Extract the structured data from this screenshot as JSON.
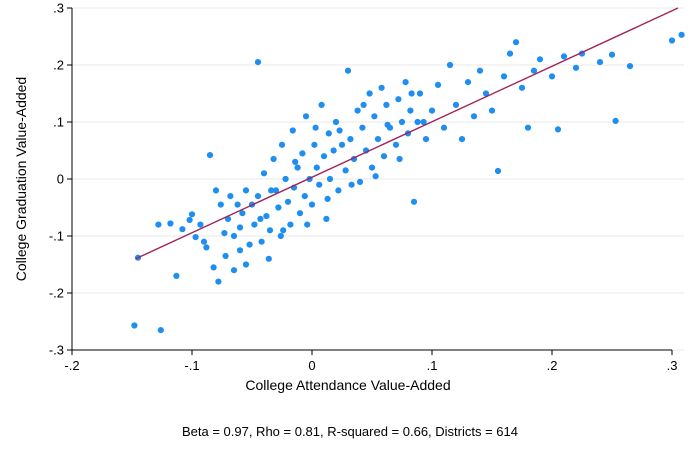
{
  "chart_data": {
    "type": "scatter",
    "title": "",
    "xlabel": "College Attendance Value-Added",
    "ylabel": "College Graduation Value-Added",
    "xlim": [
      -0.2,
      0.31
    ],
    "ylim": [
      -0.3,
      0.3
    ],
    "x_ticks": [
      {
        "value": -0.2,
        "label": "-.2"
      },
      {
        "value": -0.1,
        "label": "-.1"
      },
      {
        "value": 0,
        "label": "0"
      },
      {
        "value": 0.1,
        "label": ".1"
      },
      {
        "value": 0.2,
        "label": ".2"
      },
      {
        "value": 0.3,
        "label": ".3"
      }
    ],
    "y_ticks": [
      {
        "value": 0.3,
        "label": ".3"
      },
      {
        "value": 0.2,
        "label": ".2"
      },
      {
        "value": 0.1,
        "label": ".1"
      },
      {
        "value": 0,
        "label": "0"
      },
      {
        "value": -0.1,
        "label": "-.1"
      },
      {
        "value": -0.2,
        "label": "-.2"
      },
      {
        "value": -0.3,
        "label": "-.3"
      }
    ],
    "grid": "horizontal",
    "marker_color": "#1f8ef1",
    "fit_line_color": "#a0245a",
    "fit_line": {
      "x": [
        -0.147,
        0.305
      ],
      "y": [
        -0.14,
        0.3
      ]
    },
    "points": [
      [
        -0.148,
        -0.257
      ],
      [
        -0.126,
        -0.265
      ],
      [
        -0.145,
        -0.138
      ],
      [
        -0.113,
        -0.17
      ],
      [
        -0.128,
        -0.08
      ],
      [
        -0.118,
        -0.078
      ],
      [
        -0.108,
        -0.088
      ],
      [
        -0.097,
        -0.102
      ],
      [
        -0.1,
        -0.062
      ],
      [
        -0.093,
        -0.08
      ],
      [
        -0.09,
        -0.11
      ],
      [
        -0.082,
        -0.155
      ],
      [
        -0.078,
        -0.18
      ],
      [
        -0.072,
        -0.135
      ],
      [
        -0.065,
        -0.16
      ],
      [
        -0.06,
        -0.125
      ],
      [
        -0.055,
        -0.15
      ],
      [
        -0.085,
        0.042
      ],
      [
        -0.08,
        -0.02
      ],
      [
        -0.076,
        -0.045
      ],
      [
        -0.07,
        -0.07
      ],
      [
        -0.068,
        -0.03
      ],
      [
        -0.065,
        -0.1
      ],
      [
        -0.06,
        -0.085
      ],
      [
        -0.058,
        -0.06
      ],
      [
        -0.055,
        -0.02
      ],
      [
        -0.052,
        -0.115
      ],
      [
        -0.05,
        -0.045
      ],
      [
        -0.048,
        -0.08
      ],
      [
        -0.045,
        0.205
      ],
      [
        -0.045,
        -0.03
      ],
      [
        -0.042,
        -0.11
      ],
      [
        -0.04,
        0.01
      ],
      [
        -0.038,
        -0.065
      ],
      [
        -0.036,
        -0.14
      ],
      [
        -0.035,
        -0.09
      ],
      [
        -0.032,
        0.035
      ],
      [
        -0.03,
        -0.02
      ],
      [
        -0.028,
        -0.05
      ],
      [
        -0.026,
        -0.1
      ],
      [
        -0.025,
        0.06
      ],
      [
        -0.022,
        0.0
      ],
      [
        -0.02,
        -0.04
      ],
      [
        -0.018,
        -0.08
      ],
      [
        -0.016,
        0.085
      ],
      [
        -0.015,
        -0.015
      ],
      [
        -0.012,
        0.02
      ],
      [
        -0.01,
        -0.06
      ],
      [
        -0.008,
        0.045
      ],
      [
        -0.006,
        -0.03
      ],
      [
        -0.005,
        0.11
      ],
      [
        -0.002,
        0.0
      ],
      [
        0.0,
        -0.045
      ],
      [
        0.002,
        0.06
      ],
      [
        0.004,
        0.02
      ],
      [
        0.006,
        -0.01
      ],
      [
        0.008,
        0.13
      ],
      [
        0.01,
        0.04
      ],
      [
        0.012,
        -0.07
      ],
      [
        0.014,
        0.08
      ],
      [
        0.015,
        0.0
      ],
      [
        0.018,
        0.05
      ],
      [
        0.02,
        0.1
      ],
      [
        0.022,
        -0.02
      ],
      [
        0.025,
        0.06
      ],
      [
        0.028,
        0.015
      ],
      [
        0.03,
        0.19
      ],
      [
        0.032,
        0.07
      ],
      [
        0.035,
        0.035
      ],
      [
        0.038,
        0.12
      ],
      [
        0.04,
        -0.005
      ],
      [
        0.042,
        0.09
      ],
      [
        0.045,
        0.05
      ],
      [
        0.048,
        0.15
      ],
      [
        0.05,
        0.02
      ],
      [
        0.052,
        0.11
      ],
      [
        0.055,
        0.07
      ],
      [
        0.058,
        0.16
      ],
      [
        0.06,
        0.04
      ],
      [
        0.062,
        0.13
      ],
      [
        0.065,
        0.09
      ],
      [
        0.07,
        0.06
      ],
      [
        0.072,
        0.14
      ],
      [
        0.075,
        0.1
      ],
      [
        0.078,
        0.17
      ],
      [
        0.08,
        0.08
      ],
      [
        0.082,
        0.12
      ],
      [
        0.085,
        -0.04
      ],
      [
        0.088,
        0.1
      ],
      [
        0.09,
        0.15
      ],
      [
        0.095,
        0.07
      ],
      [
        0.1,
        0.12
      ],
      [
        0.105,
        0.165
      ],
      [
        0.11,
        0.09
      ],
      [
        0.115,
        0.2
      ],
      [
        0.12,
        0.13
      ],
      [
        0.125,
        0.07
      ],
      [
        0.13,
        0.17
      ],
      [
        0.135,
        0.11
      ],
      [
        0.14,
        0.19
      ],
      [
        0.145,
        0.15
      ],
      [
        0.15,
        0.12
      ],
      [
        0.155,
        0.014
      ],
      [
        0.16,
        0.18
      ],
      [
        0.165,
        0.22
      ],
      [
        0.17,
        0.24
      ],
      [
        0.175,
        0.16
      ],
      [
        0.18,
        0.09
      ],
      [
        0.185,
        0.19
      ],
      [
        0.19,
        0.21
      ],
      [
        0.2,
        0.18
      ],
      [
        0.205,
        0.087
      ],
      [
        0.21,
        0.215
      ],
      [
        0.22,
        0.195
      ],
      [
        0.225,
        0.22
      ],
      [
        0.24,
        0.205
      ],
      [
        0.25,
        0.218
      ],
      [
        0.253,
        0.102
      ],
      [
        0.265,
        0.198
      ],
      [
        0.3,
        0.243
      ],
      [
        0.308,
        0.253
      ],
      [
        -0.102,
        -0.072
      ],
      [
        -0.088,
        -0.12
      ],
      [
        -0.073,
        -0.095
      ],
      [
        -0.062,
        -0.045
      ],
      [
        -0.043,
        -0.07
      ],
      [
        -0.034,
        -0.02
      ],
      [
        -0.024,
        -0.09
      ],
      [
        -0.014,
        0.03
      ],
      [
        -0.004,
        -0.08
      ],
      [
        0.003,
        0.09
      ],
      [
        0.013,
        -0.035
      ],
      [
        0.023,
        0.085
      ],
      [
        0.033,
        -0.01
      ],
      [
        0.043,
        0.13
      ],
      [
        0.053,
        0.005
      ],
      [
        0.063,
        0.095
      ],
      [
        0.073,
        0.035
      ],
      [
        0.083,
        0.15
      ],
      [
        0.093,
        0.1
      ]
    ],
    "annotation": "Beta = 0.97, Rho = 0.81, R-squared = 0.66, Districts = 614"
  }
}
